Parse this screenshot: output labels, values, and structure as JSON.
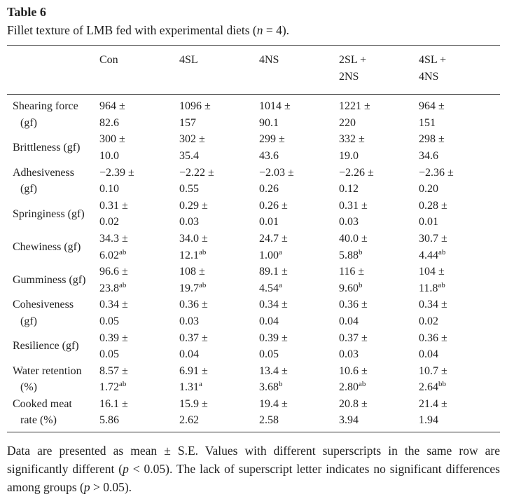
{
  "page": {
    "table_label": "Table 6",
    "caption_segments": [
      {
        "text": "Fillet texture of LMB fed with experimental diets (",
        "italic": false
      },
      {
        "text": "n",
        "italic": true
      },
      {
        "text": " = 4).",
        "italic": false
      }
    ]
  },
  "colors": {
    "text": "#1f1f1f",
    "rule": "#333333",
    "background": "#ffffff"
  },
  "table": {
    "header": [
      {
        "line1": "Con",
        "line2": ""
      },
      {
        "line1": "4SL",
        "line2": ""
      },
      {
        "line1": "4NS",
        "line2": ""
      },
      {
        "line1": "2SL +",
        "line2": "2NS"
      },
      {
        "line1": "4SL +",
        "line2": "4NS"
      }
    ],
    "rows": [
      {
        "label_line1": "Shearing force",
        "label_line2": "(gf)",
        "cells": [
          {
            "mean": "964 ±",
            "err": "82.6",
            "sup": ""
          },
          {
            "mean": "1096 ±",
            "err": "157",
            "sup": ""
          },
          {
            "mean": "1014 ±",
            "err": "90.1",
            "sup": ""
          },
          {
            "mean": "1221 ±",
            "err": "220",
            "sup": ""
          },
          {
            "mean": "964 ±",
            "err": "151",
            "sup": ""
          }
        ]
      },
      {
        "label_line1": "Brittleness (gf)",
        "label_line2": "",
        "cells": [
          {
            "mean": "300 ±",
            "err": "10.0",
            "sup": ""
          },
          {
            "mean": "302 ±",
            "err": "35.4",
            "sup": ""
          },
          {
            "mean": "299 ±",
            "err": "43.6",
            "sup": ""
          },
          {
            "mean": "332 ±",
            "err": "19.0",
            "sup": ""
          },
          {
            "mean": "298 ±",
            "err": "34.6",
            "sup": ""
          }
        ]
      },
      {
        "label_line1": "Adhesiveness",
        "label_line2": "(gf)",
        "cells": [
          {
            "mean": "−2.39 ±",
            "err": "0.10",
            "sup": ""
          },
          {
            "mean": "−2.22 ±",
            "err": "0.55",
            "sup": ""
          },
          {
            "mean": "−2.03 ±",
            "err": "0.26",
            "sup": ""
          },
          {
            "mean": "−2.26 ±",
            "err": "0.12",
            "sup": ""
          },
          {
            "mean": "−2.36 ±",
            "err": "0.20",
            "sup": ""
          }
        ]
      },
      {
        "label_line1": "Springiness (gf)",
        "label_line2": "",
        "cells": [
          {
            "mean": "0.31 ±",
            "err": "0.02",
            "sup": ""
          },
          {
            "mean": "0.29 ±",
            "err": "0.03",
            "sup": ""
          },
          {
            "mean": "0.26 ±",
            "err": "0.01",
            "sup": ""
          },
          {
            "mean": "0.31 ±",
            "err": "0.03",
            "sup": ""
          },
          {
            "mean": "0.28 ±",
            "err": "0.01",
            "sup": ""
          }
        ]
      },
      {
        "label_line1": "Chewiness (gf)",
        "label_line2": "",
        "cells": [
          {
            "mean": "34.3 ±",
            "err": "6.02",
            "sup": "ab"
          },
          {
            "mean": "34.0 ±",
            "err": "12.1",
            "sup": "ab"
          },
          {
            "mean": "24.7 ±",
            "err": "1.00",
            "sup": "a"
          },
          {
            "mean": "40.0 ±",
            "err": "5.88",
            "sup": "b"
          },
          {
            "mean": "30.7 ±",
            "err": "4.44",
            "sup": "ab"
          }
        ]
      },
      {
        "label_line1": "Gumminess (gf)",
        "label_line2": "",
        "cells": [
          {
            "mean": "96.6 ±",
            "err": "23.8",
            "sup": "ab"
          },
          {
            "mean": "108 ±",
            "err": "19.7",
            "sup": "ab"
          },
          {
            "mean": "89.1 ±",
            "err": "4.54",
            "sup": "a"
          },
          {
            "mean": "116 ±",
            "err": "9.60",
            "sup": "b"
          },
          {
            "mean": "104 ±",
            "err": "11.8",
            "sup": "ab"
          }
        ]
      },
      {
        "label_line1": "Cohesiveness",
        "label_line2": "(gf)",
        "cells": [
          {
            "mean": "0.34 ±",
            "err": "0.05",
            "sup": ""
          },
          {
            "mean": "0.36 ±",
            "err": "0.03",
            "sup": ""
          },
          {
            "mean": "0.34 ±",
            "err": "0.04",
            "sup": ""
          },
          {
            "mean": "0.36 ±",
            "err": "0.04",
            "sup": ""
          },
          {
            "mean": "0.34 ±",
            "err": "0.02",
            "sup": ""
          }
        ]
      },
      {
        "label_line1": "Resilience (gf)",
        "label_line2": "",
        "cells": [
          {
            "mean": "0.39 ±",
            "err": "0.05",
            "sup": ""
          },
          {
            "mean": "0.37 ±",
            "err": "0.04",
            "sup": ""
          },
          {
            "mean": "0.39 ±",
            "err": "0.05",
            "sup": ""
          },
          {
            "mean": "0.37 ±",
            "err": "0.03",
            "sup": ""
          },
          {
            "mean": "0.36 ±",
            "err": "0.04",
            "sup": ""
          }
        ]
      },
      {
        "label_line1": "Water retention",
        "label_line2": "(%)",
        "cells": [
          {
            "mean": "8.57 ±",
            "err": "1.72",
            "sup": "ab"
          },
          {
            "mean": "6.91 ±",
            "err": "1.31",
            "sup": "a"
          },
          {
            "mean": "13.4 ±",
            "err": "3.68",
            "sup": "b"
          },
          {
            "mean": "10.6 ±",
            "err": "2.80",
            "sup": "ab"
          },
          {
            "mean": "10.7 ±",
            "err": "2.64",
            "sup": "bb"
          }
        ]
      },
      {
        "label_line1": "Cooked meat",
        "label_line2": "rate (%)",
        "cells": [
          {
            "mean": "16.1 ±",
            "err": "5.86",
            "sup": ""
          },
          {
            "mean": "15.9 ±",
            "err": "2.62",
            "sup": ""
          },
          {
            "mean": "19.4 ±",
            "err": "2.58",
            "sup": ""
          },
          {
            "mean": "20.8 ±",
            "err": "3.94",
            "sup": ""
          },
          {
            "mean": "21.4 ±",
            "err": "1.94",
            "sup": ""
          }
        ]
      }
    ]
  },
  "footnote_segments": [
    {
      "text": "Data are presented as mean ± S.E. Values with different superscripts in the same row are significantly different (",
      "italic": false
    },
    {
      "text": "p",
      "italic": true
    },
    {
      "text": " < 0.05). The lack of superscript letter indicates no significant differences among groups (",
      "italic": false
    },
    {
      "text": "p",
      "italic": true
    },
    {
      "text": " > 0.05).",
      "italic": false
    }
  ]
}
